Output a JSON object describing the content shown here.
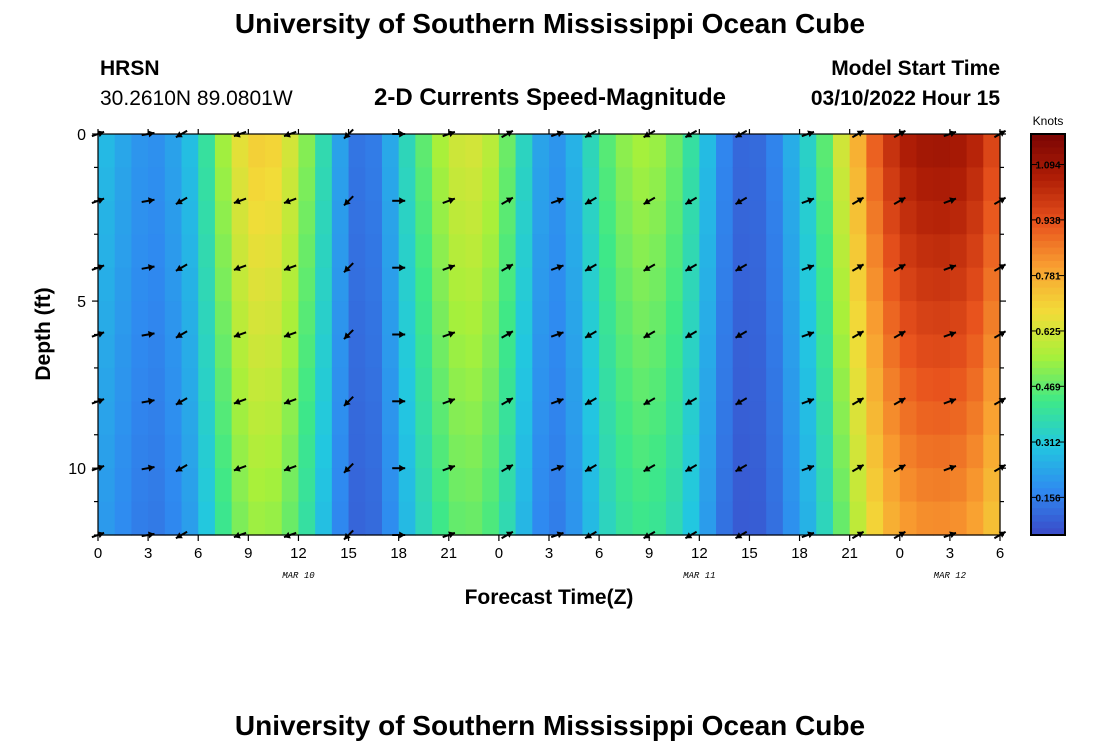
{
  "header": {
    "title": "University of Southern Mississippi Ocean Cube",
    "station": "HRSN",
    "coords": "30.2610N  89.0801W",
    "chart_title": "2-D Currents Speed-Magnitude",
    "model_start_label": "Model Start Time",
    "model_start_value": "03/10/2022 Hour 15"
  },
  "footer": {
    "title": "University of Southern Mississippi Ocean Cube"
  },
  "chart_data": {
    "type": "heatmap",
    "title": "2-D Currents Speed-Magnitude",
    "xlabel": "Forecast Time(Z)",
    "ylabel": "Depth (ft)",
    "colorbar_label": "Knots",
    "x_ticks": [
      "0",
      "3",
      "6",
      "9",
      "12",
      "15",
      "18",
      "21",
      "0",
      "3",
      "6",
      "9",
      "12",
      "15",
      "18",
      "21",
      "0",
      "3",
      "6"
    ],
    "x_range_hours": [
      0,
      54
    ],
    "date_labels": [
      {
        "hour": 12,
        "label": "MAR 10"
      },
      {
        "hour": 36,
        "label": "MAR 11"
      },
      {
        "hour": 51,
        "label": "MAR 12"
      }
    ],
    "y_ticks": [
      "0",
      "5",
      "10"
    ],
    "y_range": [
      0,
      12
    ],
    "y_inverted": true,
    "colorbar_ticks": [
      "1.094",
      "0.938",
      "0.781",
      "0.625",
      "0.469",
      "0.312",
      "0.156"
    ],
    "colorbar_range": [
      0.05,
      1.18
    ],
    "colorscale": [
      "#3b4ac8",
      "#2f8af0",
      "#22c7e0",
      "#3ee888",
      "#a8f03a",
      "#f2dc38",
      "#f9a031",
      "#e8531d",
      "#b01e06",
      "#7a0403"
    ],
    "speed_profile": {
      "hours": [
        0,
        1,
        2,
        3,
        4,
        5,
        6,
        7,
        8,
        9,
        10,
        11,
        12,
        13,
        14,
        15,
        16,
        17,
        18,
        19,
        20,
        21,
        22,
        23,
        24,
        25,
        26,
        27,
        28,
        29,
        30,
        31,
        32,
        33,
        34,
        35,
        36,
        37,
        38,
        39,
        40,
        41,
        42,
        43,
        44,
        45,
        46,
        47,
        48,
        49,
        50,
        51,
        52,
        53,
        54
      ],
      "speed_knots": [
        0.3,
        0.25,
        0.22,
        0.18,
        0.2,
        0.25,
        0.32,
        0.48,
        0.62,
        0.7,
        0.72,
        0.68,
        0.58,
        0.45,
        0.3,
        0.15,
        0.12,
        0.18,
        0.3,
        0.42,
        0.52,
        0.6,
        0.64,
        0.62,
        0.55,
        0.42,
        0.28,
        0.18,
        0.22,
        0.3,
        0.42,
        0.5,
        0.55,
        0.56,
        0.52,
        0.45,
        0.34,
        0.22,
        0.12,
        0.1,
        0.13,
        0.2,
        0.3,
        0.38,
        0.55,
        0.7,
        0.85,
        0.98,
        1.05,
        1.09,
        1.1,
        1.1,
        1.08,
        1.02,
        0.92
      ],
      "depth_surface_factor": 1.0,
      "depth_bottom_factor": 0.75
    },
    "vector_rows_depth_ft": [
      0,
      2,
      4,
      6,
      8,
      10,
      12
    ],
    "vector_columns_hours": [
      0,
      3,
      5,
      8.5,
      11.5,
      15,
      18,
      21,
      24.5,
      27.5,
      29.5,
      33,
      35.5,
      38.5,
      42.5,
      45.5,
      48,
      51,
      54
    ],
    "vector_directions_deg": [
      20,
      10,
      210,
      200,
      200,
      225,
      0,
      20,
      30,
      20,
      210,
      210,
      210,
      210,
      20,
      30,
      30,
      20,
      30
    ]
  }
}
